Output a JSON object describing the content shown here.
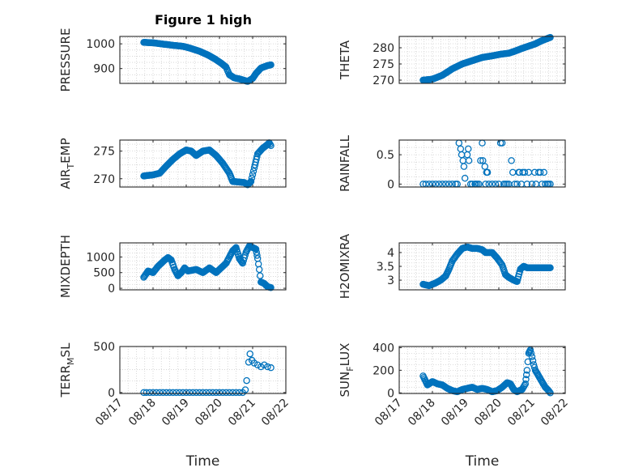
{
  "figure": {
    "title": "Figure 1 high"
  },
  "chart_data": [
    {
      "id": "pressure",
      "type": "scatter",
      "ylabel": [
        {
          "t": "PRESSURE"
        }
      ],
      "xlabel": "",
      "xlim": [
        0,
        5
      ],
      "ylim": [
        840,
        1030
      ],
      "yticks": [
        900,
        1000
      ],
      "xticks": [
        0,
        1,
        2,
        3,
        4,
        5
      ],
      "xticklabels": [],
      "title": "Figure 1 high",
      "grid": true,
      "keys": [
        [
          0.72,
          1006
        ],
        [
          1.0,
          1004
        ],
        [
          1.3,
          999
        ],
        [
          1.6,
          994
        ],
        [
          1.9,
          990
        ],
        [
          2.1,
          983
        ],
        [
          2.4,
          970
        ],
        [
          2.65,
          955
        ],
        [
          2.85,
          940
        ],
        [
          3.05,
          922
        ],
        [
          3.2,
          906
        ],
        [
          3.3,
          875
        ],
        [
          3.45,
          862
        ],
        [
          3.6,
          858
        ],
        [
          3.75,
          852
        ],
        [
          3.85,
          848
        ],
        [
          4.0,
          860
        ],
        [
          4.1,
          880
        ],
        [
          4.25,
          902
        ],
        [
          4.45,
          912
        ],
        [
          4.55,
          915
        ]
      ],
      "values": []
    },
    {
      "id": "theta",
      "type": "scatter",
      "ylabel": [
        {
          "t": "THETA"
        }
      ],
      "xlabel": "",
      "xlim": [
        0,
        5
      ],
      "ylim": [
        269,
        283.5
      ],
      "yticks": [
        270,
        275,
        280
      ],
      "xticks": [
        0,
        1,
        2,
        3,
        4,
        5
      ],
      "xticklabels": [],
      "grid": true,
      "keys": [
        [
          0.72,
          270
        ],
        [
          1.0,
          270.3
        ],
        [
          1.3,
          271.5
        ],
        [
          1.6,
          273.5
        ],
        [
          1.9,
          275
        ],
        [
          2.2,
          276
        ],
        [
          2.5,
          277
        ],
        [
          2.8,
          277.5
        ],
        [
          3.05,
          278
        ],
        [
          3.3,
          278.3
        ],
        [
          3.5,
          279
        ],
        [
          3.7,
          279.8
        ],
        [
          3.9,
          280.5
        ],
        [
          4.1,
          281.2
        ],
        [
          4.3,
          282.2
        ],
        [
          4.5,
          283
        ],
        [
          4.55,
          283.2
        ]
      ],
      "values": []
    },
    {
      "id": "airtemp",
      "type": "scatter",
      "ylabel": [
        {
          "t": "AIR"
        },
        {
          "t": "T",
          "sub": true
        },
        {
          "t": "EMP"
        }
      ],
      "xlabel": "",
      "xlim": [
        0,
        5
      ],
      "ylim": [
        268.5,
        277
      ],
      "yticks": [
        270,
        275
      ],
      "xticks": [
        0,
        1,
        2,
        3,
        4,
        5
      ],
      "xticklabels": [],
      "grid": true,
      "keys": [
        [
          0.72,
          270.5
        ],
        [
          1.0,
          270.7
        ],
        [
          1.2,
          271
        ],
        [
          1.4,
          272.3
        ],
        [
          1.6,
          273.5
        ],
        [
          1.8,
          274.5
        ],
        [
          2.0,
          275.2
        ],
        [
          2.15,
          275
        ],
        [
          2.3,
          274.2
        ],
        [
          2.5,
          275
        ],
        [
          2.7,
          275.2
        ],
        [
          2.9,
          274.2
        ],
        [
          3.1,
          272.8
        ],
        [
          3.3,
          271
        ],
        [
          3.4,
          269.5
        ],
        [
          3.6,
          269.4
        ],
        [
          3.75,
          269.3
        ],
        [
          3.85,
          268.9
        ],
        [
          3.95,
          269.5
        ],
        [
          4.05,
          272
        ],
        [
          4.15,
          274.5
        ],
        [
          4.3,
          275.5
        ],
        [
          4.45,
          276.2
        ],
        [
          4.5,
          276.5
        ],
        [
          4.55,
          276
        ]
      ],
      "values": []
    },
    {
      "id": "rainfall",
      "type": "scatter",
      "ylabel": [
        {
          "t": "RAINFALL"
        }
      ],
      "xlabel": "",
      "xlim": [
        0,
        5
      ],
      "ylim": [
        -0.05,
        0.75
      ],
      "yticks": [
        0,
        0.5
      ],
      "xticks": [
        0,
        1,
        2,
        3,
        4,
        5
      ],
      "xticklabels": [],
      "grid": true,
      "keys": [],
      "values": [
        [
          0.72,
          0
        ],
        [
          0.8,
          0
        ],
        [
          0.9,
          0
        ],
        [
          1.0,
          0
        ],
        [
          1.1,
          0
        ],
        [
          1.2,
          0
        ],
        [
          1.3,
          0
        ],
        [
          1.4,
          0
        ],
        [
          1.5,
          0
        ],
        [
          1.6,
          0
        ],
        [
          1.7,
          0
        ],
        [
          1.75,
          0
        ],
        [
          1.8,
          0.7
        ],
        [
          1.85,
          0.6
        ],
        [
          1.88,
          0.5
        ],
        [
          1.92,
          0.4
        ],
        [
          1.95,
          0.3
        ],
        [
          1.98,
          0.1
        ],
        [
          2.05,
          0.5
        ],
        [
          2.08,
          0.6
        ],
        [
          2.1,
          0.4
        ],
        [
          2.15,
          0
        ],
        [
          2.2,
          0
        ],
        [
          2.28,
          0
        ],
        [
          2.3,
          0
        ],
        [
          2.35,
          0
        ],
        [
          2.4,
          0
        ],
        [
          2.45,
          0.4
        ],
        [
          2.5,
          0.7
        ],
        [
          2.52,
          0.4
        ],
        [
          2.58,
          0.3
        ],
        [
          2.6,
          0
        ],
        [
          2.63,
          0.2
        ],
        [
          2.66,
          0.2
        ],
        [
          2.7,
          0
        ],
        [
          2.8,
          0
        ],
        [
          2.9,
          0
        ],
        [
          3.0,
          0
        ],
        [
          3.05,
          0.7
        ],
        [
          3.1,
          0.7
        ],
        [
          3.15,
          0
        ],
        [
          3.2,
          0
        ],
        [
          3.25,
          0
        ],
        [
          3.3,
          0
        ],
        [
          3.38,
          0.4
        ],
        [
          3.42,
          0.2
        ],
        [
          3.48,
          0
        ],
        [
          3.55,
          0
        ],
        [
          3.6,
          0.2
        ],
        [
          3.62,
          0.2
        ],
        [
          3.68,
          0
        ],
        [
          3.72,
          0.2
        ],
        [
          3.78,
          0.2
        ],
        [
          3.85,
          0
        ],
        [
          3.9,
          0.2
        ],
        [
          4.0,
          0
        ],
        [
          4.08,
          0.2
        ],
        [
          4.12,
          0
        ],
        [
          4.2,
          0.2
        ],
        [
          4.25,
          0.2
        ],
        [
          4.3,
          0
        ],
        [
          4.36,
          0.2
        ],
        [
          4.4,
          0
        ],
        [
          4.46,
          0
        ],
        [
          4.5,
          0
        ],
        [
          4.55,
          0
        ]
      ]
    },
    {
      "id": "mixdepth",
      "type": "scatter",
      "ylabel": [
        {
          "t": "MIXDEPTH"
        }
      ],
      "xlabel": "",
      "xlim": [
        0,
        5
      ],
      "ylim": [
        -50,
        1450
      ],
      "yticks": [
        0,
        500,
        1000
      ],
      "xticks": [
        0,
        1,
        2,
        3,
        4,
        5
      ],
      "xticklabels": [],
      "grid": true,
      "keys": [
        [
          0.72,
          350
        ],
        [
          0.85,
          550
        ],
        [
          1.0,
          500
        ],
        [
          1.15,
          700
        ],
        [
          1.35,
          900
        ],
        [
          1.45,
          980
        ],
        [
          1.55,
          900
        ],
        [
          1.65,
          600
        ],
        [
          1.75,
          400
        ],
        [
          1.85,
          500
        ],
        [
          1.95,
          650
        ],
        [
          2.05,
          550
        ],
        [
          2.3,
          600
        ],
        [
          2.5,
          500
        ],
        [
          2.7,
          650
        ],
        [
          2.9,
          500
        ],
        [
          3.05,
          650
        ],
        [
          3.2,
          800
        ],
        [
          3.3,
          1000
        ],
        [
          3.4,
          1200
        ],
        [
          3.5,
          1300
        ],
        [
          3.6,
          950
        ],
        [
          3.7,
          800
        ],
        [
          3.8,
          1150
        ],
        [
          3.9,
          1350
        ],
        [
          4.0,
          1300
        ],
        [
          4.1,
          1250
        ],
        [
          4.15,
          950
        ],
        [
          4.2,
          600
        ],
        [
          4.25,
          200
        ],
        [
          4.35,
          150
        ],
        [
          4.45,
          50
        ],
        [
          4.55,
          20
        ]
      ],
      "values": []
    },
    {
      "id": "h2omixra",
      "type": "scatter",
      "ylabel": [
        {
          "t": "H2OMIXRA"
        }
      ],
      "xlabel": "",
      "xlim": [
        0,
        5
      ],
      "ylim": [
        2.65,
        4.35
      ],
      "yticks": [
        3,
        3.5,
        4
      ],
      "xticks": [
        0,
        1,
        2,
        3,
        4,
        5
      ],
      "xticklabels": [],
      "grid": true,
      "keys": [
        [
          0.72,
          2.85
        ],
        [
          0.9,
          2.8
        ],
        [
          1.1,
          2.9
        ],
        [
          1.25,
          3.0
        ],
        [
          1.4,
          3.15
        ],
        [
          1.5,
          3.4
        ],
        [
          1.6,
          3.7
        ],
        [
          1.75,
          3.95
        ],
        [
          1.9,
          4.15
        ],
        [
          2.05,
          4.2
        ],
        [
          2.2,
          4.15
        ],
        [
          2.35,
          4.15
        ],
        [
          2.5,
          4.1
        ],
        [
          2.6,
          4.0
        ],
        [
          2.8,
          4.0
        ],
        [
          2.95,
          3.8
        ],
        [
          3.1,
          3.55
        ],
        [
          3.2,
          3.2
        ],
        [
          3.3,
          3.1
        ],
        [
          3.45,
          3.0
        ],
        [
          3.55,
          2.95
        ],
        [
          3.65,
          3.4
        ],
        [
          3.75,
          3.5
        ],
        [
          3.85,
          3.45
        ],
        [
          4.0,
          3.45
        ],
        [
          4.3,
          3.45
        ],
        [
          4.55,
          3.45
        ]
      ],
      "values": []
    },
    {
      "id": "terrmsl",
      "type": "scatter",
      "ylabel": [
        {
          "t": "TERR"
        },
        {
          "t": "M",
          "sub": true
        },
        {
          "t": "SL"
        }
      ],
      "xlabel": "Time",
      "xlim": [
        0,
        5
      ],
      "ylim": [
        -10,
        500
      ],
      "yticks": [
        0,
        500
      ],
      "xticks": [
        0,
        1,
        2,
        3,
        4,
        5
      ],
      "xticklabels": [
        "08/17",
        "08/18",
        "08/19",
        "08/20",
        "08/21",
        "08/22"
      ],
      "grid": true,
      "keys": [],
      "values": [
        [
          0.72,
          0
        ],
        [
          0.8,
          0
        ],
        [
          0.9,
          0
        ],
        [
          1.0,
          0
        ],
        [
          1.1,
          0
        ],
        [
          1.2,
          0
        ],
        [
          1.3,
          0
        ],
        [
          1.4,
          0
        ],
        [
          1.5,
          0
        ],
        [
          1.6,
          0
        ],
        [
          1.7,
          0
        ],
        [
          1.8,
          0
        ],
        [
          1.9,
          0
        ],
        [
          2.0,
          0
        ],
        [
          2.1,
          0
        ],
        [
          2.2,
          0
        ],
        [
          2.3,
          0
        ],
        [
          2.4,
          0
        ],
        [
          2.5,
          0
        ],
        [
          2.6,
          0
        ],
        [
          2.7,
          0
        ],
        [
          2.8,
          0
        ],
        [
          2.9,
          0
        ],
        [
          3.0,
          0
        ],
        [
          3.1,
          0
        ],
        [
          3.2,
          0
        ],
        [
          3.3,
          0
        ],
        [
          3.4,
          0
        ],
        [
          3.5,
          0
        ],
        [
          3.6,
          0
        ],
        [
          3.7,
          0
        ],
        [
          3.78,
          30
        ],
        [
          3.82,
          130
        ],
        [
          3.88,
          330
        ],
        [
          3.92,
          420
        ],
        [
          3.98,
          350
        ],
        [
          4.05,
          320
        ],
        [
          4.15,
          300
        ],
        [
          4.25,
          280
        ],
        [
          4.35,
          300
        ],
        [
          4.45,
          280
        ],
        [
          4.55,
          270
        ]
      ]
    },
    {
      "id": "sunflux",
      "type": "scatter",
      "ylabel": [
        {
          "t": "SUN"
        },
        {
          "t": "F",
          "sub": true
        },
        {
          "t": "LUX"
        }
      ],
      "xlabel": "Time",
      "xlim": [
        0,
        5
      ],
      "ylim": [
        -5,
        410
      ],
      "yticks": [
        0,
        200,
        400
      ],
      "xticks": [
        0,
        1,
        2,
        3,
        4,
        5
      ],
      "xticklabels": [
        "08/17",
        "08/18",
        "08/19",
        "08/20",
        "08/21",
        "08/22"
      ],
      "grid": true,
      "keys": [
        [
          0.72,
          150
        ],
        [
          0.85,
          70
        ],
        [
          1.0,
          100
        ],
        [
          1.15,
          80
        ],
        [
          1.3,
          70
        ],
        [
          1.45,
          40
        ],
        [
          1.6,
          20
        ],
        [
          1.75,
          10
        ],
        [
          1.9,
          30
        ],
        [
          2.05,
          40
        ],
        [
          2.2,
          50
        ],
        [
          2.35,
          30
        ],
        [
          2.5,
          40
        ],
        [
          2.65,
          30
        ],
        [
          2.8,
          10
        ],
        [
          2.95,
          20
        ],
        [
          3.1,
          50
        ],
        [
          3.25,
          90
        ],
        [
          3.35,
          80
        ],
        [
          3.45,
          30
        ],
        [
          3.55,
          10
        ],
        [
          3.7,
          30
        ],
        [
          3.8,
          80
        ],
        [
          3.85,
          200
        ],
        [
          3.9,
          350
        ],
        [
          3.95,
          380
        ],
        [
          4.0,
          320
        ],
        [
          4.05,
          250
        ],
        [
          4.1,
          200
        ],
        [
          4.2,
          150
        ],
        [
          4.3,
          100
        ],
        [
          4.4,
          50
        ],
        [
          4.5,
          20
        ],
        [
          4.55,
          0
        ]
      ],
      "values": []
    }
  ]
}
